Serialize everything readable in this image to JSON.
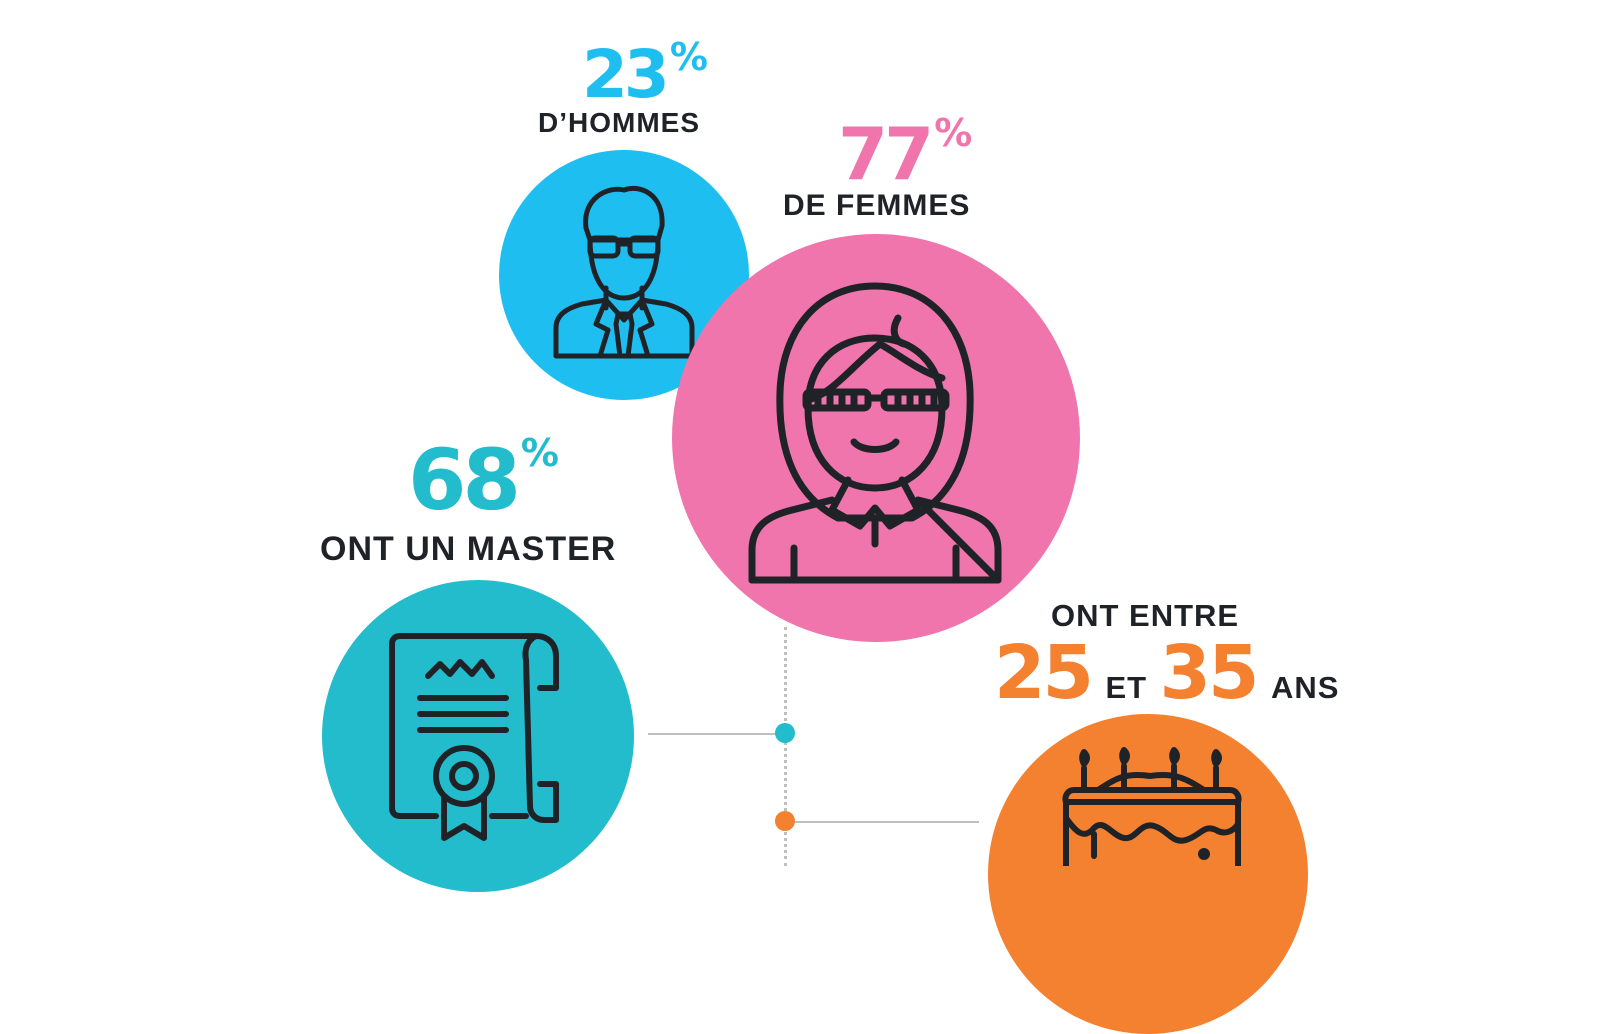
{
  "colors": {
    "men": "#1ebff0",
    "women": "#ef75ac",
    "master": "#22bccd",
    "age": "#f3812f",
    "text": "#1f2328",
    "connector": "#bfbfbf"
  },
  "men": {
    "value": "23",
    "percent": "%",
    "label": "D’HOMMES",
    "icon": "man-with-glasses-icon"
  },
  "women": {
    "value": "77",
    "percent": "%",
    "label": "DE FEMMES",
    "icon": "woman-with-glasses-icon"
  },
  "master": {
    "value": "68",
    "percent": "%",
    "label": "ONT UN MASTER",
    "icon": "diploma-certificate-icon"
  },
  "age": {
    "intro": "ONT ENTRE",
    "min": "25",
    "connector": "ET",
    "max": "35",
    "unit": "ANS",
    "icon": "birthday-cake-icon"
  }
}
